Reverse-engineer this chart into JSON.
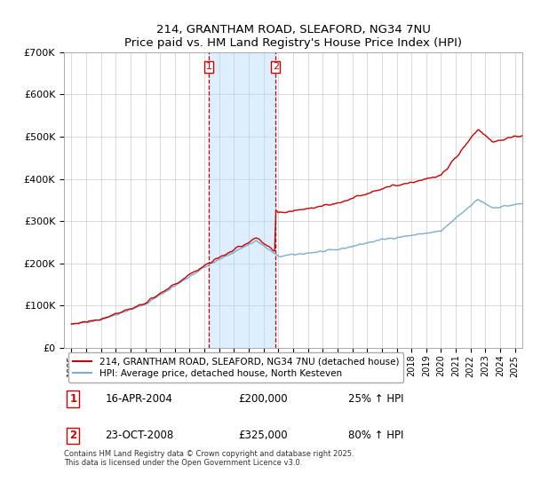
{
  "title": "214, GRANTHAM ROAD, SLEAFORD, NG34 7NU",
  "subtitle": "Price paid vs. HM Land Registry's House Price Index (HPI)",
  "legend_line1": "214, GRANTHAM ROAD, SLEAFORD, NG34 7NU (detached house)",
  "legend_line2": "HPI: Average price, detached house, North Kesteven",
  "footnote": "Contains HM Land Registry data © Crown copyright and database right 2025.\nThis data is licensed under the Open Government Licence v3.0.",
  "marker1": {
    "label": "1",
    "date": "16-APR-2004",
    "price": "£200,000",
    "hpi": "25% ↑ HPI",
    "x": 2004.29
  },
  "marker2": {
    "label": "2",
    "date": "23-OCT-2008",
    "price": "£325,000",
    "hpi": "80% ↑ HPI",
    "x": 2008.81
  },
  "red_line_color": "#cc0000",
  "blue_line_color": "#7aadd0",
  "shade_color": "#ddeeff",
  "ylim": [
    0,
    700000
  ],
  "xlim": [
    1994.5,
    2025.5
  ]
}
